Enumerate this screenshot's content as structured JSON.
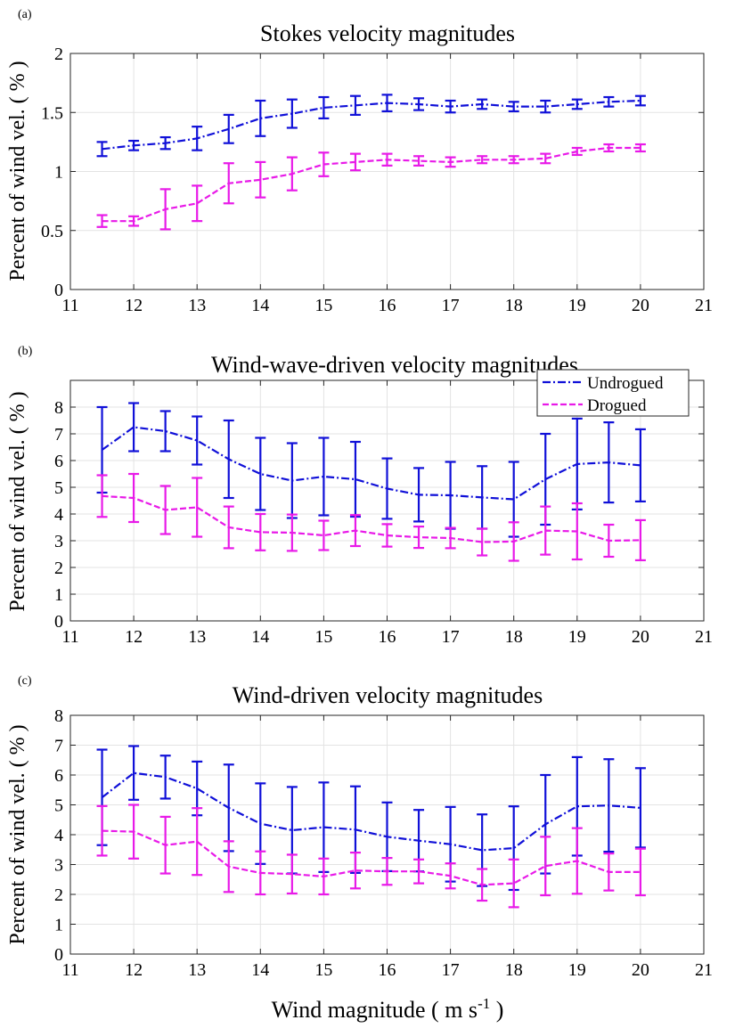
{
  "colors": {
    "undrogued": "#1010d8",
    "drogued": "#e81ae8",
    "grid": "#e3e3e3",
    "axis": "#262626"
  },
  "legend": {
    "undrogued": "Undrogued",
    "drogued": "Drogued",
    "placement": "top-right of panel b"
  },
  "x_axis_label": {
    "main": "Wind magnitude ( m s",
    "sup": "-1",
    "close": " )"
  },
  "chart_data": [
    {
      "panel_label": "(a)",
      "type": "line",
      "title": "Stokes velocity magnitudes",
      "ylabel": "Percent of wind vel. ( % )",
      "xlim": [
        11,
        21
      ],
      "ylim": [
        0,
        2
      ],
      "xticks": [
        "11",
        "12",
        "13",
        "14",
        "15",
        "16",
        "17",
        "18",
        "19",
        "20",
        "21"
      ],
      "yticks": [
        "0",
        "0.5",
        "1",
        "1.5",
        "2"
      ],
      "x": [
        11.5,
        12,
        12.5,
        13,
        13.5,
        14,
        14.5,
        15,
        15.5,
        16,
        16.5,
        17,
        17.5,
        18,
        18.5,
        19,
        19.5,
        20
      ],
      "series": [
        {
          "name": "Undrogued",
          "values": [
            1.19,
            1.22,
            1.24,
            1.28,
            1.36,
            1.45,
            1.49,
            1.54,
            1.56,
            1.58,
            1.57,
            1.55,
            1.57,
            1.55,
            1.55,
            1.57,
            1.59,
            1.6
          ],
          "err": [
            0.06,
            0.04,
            0.05,
            0.1,
            0.12,
            0.15,
            0.12,
            0.09,
            0.08,
            0.07,
            0.05,
            0.05,
            0.04,
            0.04,
            0.05,
            0.04,
            0.04,
            0.04
          ]
        },
        {
          "name": "Drogued",
          "values": [
            0.58,
            0.58,
            0.68,
            0.73,
            0.9,
            0.93,
            0.98,
            1.06,
            1.08,
            1.1,
            1.09,
            1.08,
            1.1,
            1.1,
            1.11,
            1.17,
            1.2,
            1.2
          ],
          "err": [
            0.05,
            0.04,
            0.17,
            0.15,
            0.17,
            0.15,
            0.14,
            0.1,
            0.07,
            0.05,
            0.04,
            0.04,
            0.03,
            0.03,
            0.04,
            0.03,
            0.03,
            0.03
          ]
        }
      ]
    },
    {
      "panel_label": "(b)",
      "type": "line",
      "title": "Wind-wave-driven velocity magnitudes",
      "ylabel": "Percent of wind vel. ( % )",
      "xlim": [
        11,
        21
      ],
      "ylim": [
        0,
        9
      ],
      "xticks": [
        "11",
        "12",
        "13",
        "14",
        "15",
        "16",
        "17",
        "18",
        "19",
        "20",
        "21"
      ],
      "yticks": [
        "0",
        "1",
        "2",
        "3",
        "4",
        "5",
        "6",
        "7",
        "8"
      ],
      "x": [
        11.5,
        12,
        12.5,
        13,
        13.5,
        14,
        14.5,
        15,
        15.5,
        16,
        16.5,
        17,
        17.5,
        18,
        18.5,
        19,
        19.5,
        20
      ],
      "series": [
        {
          "name": "Undrogued",
          "values": [
            6.4,
            7.25,
            7.1,
            6.75,
            6.05,
            5.5,
            5.25,
            5.4,
            5.3,
            4.95,
            4.72,
            4.7,
            4.62,
            4.55,
            5.3,
            5.87,
            5.93,
            5.82
          ],
          "err": [
            1.6,
            0.9,
            0.75,
            0.9,
            1.45,
            1.35,
            1.4,
            1.45,
            1.4,
            1.13,
            1.0,
            1.25,
            1.17,
            1.4,
            1.7,
            1.7,
            1.5,
            1.35
          ]
        },
        {
          "name": "Drogued",
          "values": [
            4.67,
            4.6,
            4.15,
            4.25,
            3.5,
            3.32,
            3.3,
            3.2,
            3.38,
            3.2,
            3.13,
            3.1,
            2.95,
            2.97,
            3.38,
            3.35,
            3.0,
            3.02
          ],
          "err": [
            0.78,
            0.9,
            0.9,
            1.1,
            0.78,
            0.68,
            0.68,
            0.55,
            0.58,
            0.42,
            0.4,
            0.38,
            0.5,
            0.72,
            0.9,
            1.05,
            0.6,
            0.75
          ]
        }
      ]
    },
    {
      "panel_label": "(c)",
      "type": "line",
      "title": "Wind-driven velocity magnitudes",
      "ylabel": "Percent of wind vel. ( % )",
      "xlim": [
        11,
        21
      ],
      "ylim": [
        0,
        8
      ],
      "xticks": [
        "11",
        "12",
        "13",
        "14",
        "15",
        "16",
        "17",
        "18",
        "19",
        "20",
        "21"
      ],
      "yticks": [
        "0",
        "1",
        "2",
        "3",
        "4",
        "5",
        "6",
        "7",
        "8"
      ],
      "x": [
        11.5,
        12,
        12.5,
        13,
        13.5,
        14,
        14.5,
        15,
        15.5,
        16,
        16.5,
        17,
        17.5,
        18,
        18.5,
        19,
        19.5,
        20
      ],
      "series": [
        {
          "name": "Undrogued",
          "values": [
            5.25,
            6.07,
            5.93,
            5.55,
            4.9,
            4.37,
            4.15,
            4.25,
            4.17,
            3.93,
            3.8,
            3.68,
            3.48,
            3.55,
            4.35,
            4.95,
            4.98,
            4.9
          ],
          "err": [
            1.6,
            0.9,
            0.72,
            0.9,
            1.45,
            1.35,
            1.45,
            1.5,
            1.45,
            1.15,
            1.03,
            1.25,
            1.2,
            1.4,
            1.65,
            1.65,
            1.55,
            1.33
          ]
        },
        {
          "name": "Drogued",
          "values": [
            4.13,
            4.1,
            3.65,
            3.77,
            2.93,
            2.72,
            2.68,
            2.6,
            2.8,
            2.77,
            2.77,
            2.62,
            2.32,
            2.37,
            2.95,
            3.12,
            2.75,
            2.75
          ],
          "err": [
            0.83,
            0.9,
            0.95,
            1.12,
            0.85,
            0.72,
            0.65,
            0.6,
            0.6,
            0.45,
            0.4,
            0.42,
            0.53,
            0.8,
            0.98,
            1.1,
            0.62,
            0.78
          ]
        }
      ]
    }
  ]
}
